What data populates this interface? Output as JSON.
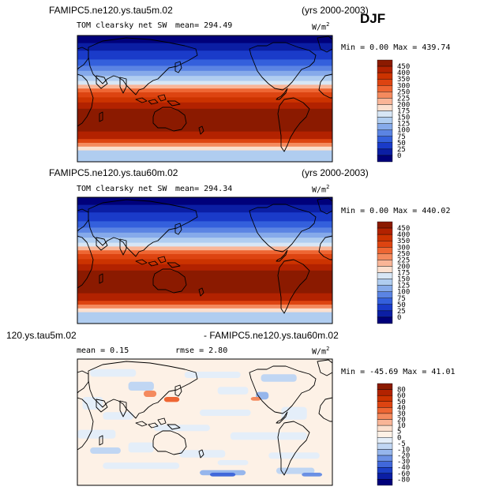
{
  "season": "DJF",
  "panels": [
    {
      "case_left": "FAMIPC5.ne120.ys.tau5m.02",
      "case_right": "(yrs 2000-2003)",
      "variable": "TOM clearsky net SW",
      "stat1": "mean= 294.49",
      "stat2": "",
      "units": "W/m",
      "units_sup": "2",
      "minmax": "Min =    0.00 Max = 439.74",
      "colorbar": {
        "levels": [
          "450",
          "400",
          "350",
          "300",
          "250",
          "225",
          "200",
          "175",
          "150",
          "125",
          "100",
          "75",
          "50",
          "25",
          "0"
        ],
        "colors": [
          "#8b1a00",
          "#b22200",
          "#cc3300",
          "#dd4411",
          "#ee6633",
          "#f48a5e",
          "#f9b597",
          "#fbe0cf",
          "#d7e6f5",
          "#b0cdf0",
          "#86aaea",
          "#5b84e3",
          "#3460dc",
          "#1a3bc9",
          "#0b1ea4",
          "#00007a"
        ]
      }
    },
    {
      "case_left": "FAMIPC5.ne120.ys.tau60m.02",
      "case_right": "(yrs 2000-2003)",
      "variable": "TOM clearsky net SW",
      "stat1": "mean= 294.34",
      "stat2": "",
      "units": "W/m",
      "units_sup": "2",
      "minmax": "Min =    0.00 Max = 440.02",
      "colorbar": {
        "levels": [
          "450",
          "400",
          "350",
          "300",
          "250",
          "225",
          "200",
          "175",
          "150",
          "125",
          "100",
          "75",
          "50",
          "25",
          "0"
        ],
        "colors": [
          "#8b1a00",
          "#b22200",
          "#cc3300",
          "#dd4411",
          "#ee6633",
          "#f48a5e",
          "#f9b597",
          "#fbe0cf",
          "#d7e6f5",
          "#b0cdf0",
          "#86aaea",
          "#5b84e3",
          "#3460dc",
          "#1a3bc9",
          "#0b1ea4",
          "#00007a"
        ]
      }
    },
    {
      "case_left": "120.ys.tau5m.02",
      "case_right": "- FAMIPC5.ne120.ys.tau60m.02",
      "variable": "",
      "stat1": "mean =    0.15",
      "stat2": "rmse =    2.80",
      "units": "W/m",
      "units_sup": "2",
      "minmax": "Min = -45.69 Max =  41.01",
      "colorbar": {
        "levels": [
          "80",
          "60",
          "50",
          "40",
          "30",
          "20",
          "10",
          "5",
          "0",
          "-5",
          "-10",
          "-20",
          "-30",
          "-40",
          "-60",
          "-80"
        ],
        "colors": [
          "#8b1a00",
          "#b22200",
          "#cc3300",
          "#dd4411",
          "#ee6633",
          "#f48a5e",
          "#f9b597",
          "#fbe0cf",
          "#fdf1e6",
          "#e4eef9",
          "#c0d6f3",
          "#96b6ec",
          "#6b90e4",
          "#4168da",
          "#1c3fc6",
          "#0b1ea4",
          "#00007a"
        ]
      }
    }
  ],
  "chart_data": [
    {
      "type": "heatmap",
      "title": "TOM clearsky net SW",
      "subtitle": "FAMIPC5.ne120.ys.tau5m.02 (yrs 2000-2003)",
      "season": "DJF",
      "units": "W/m2",
      "mean": 294.49,
      "min": 0.0,
      "max": 439.74,
      "contour_levels": [
        0,
        25,
        50,
        75,
        100,
        125,
        150,
        175,
        200,
        225,
        250,
        300,
        350,
        400,
        450
      ],
      "map": "global lat-lon, Pacific-centered",
      "latitudinal_bands_south_to_north": [
        {
          "lat_range": "90S-70S",
          "value_range": "150-175"
        },
        {
          "lat_range": "70S-60S",
          "value_range": "200-250"
        },
        {
          "lat_range": "60S-45S",
          "value_range": "300-400"
        },
        {
          "lat_range": "45S-10N",
          "value_range": ">400"
        },
        {
          "lat_range": "10N-25N",
          "value_range": "350-400"
        },
        {
          "lat_range": "25N-35N",
          "value_range": "250-300"
        },
        {
          "lat_range": "35N-45N",
          "value_range": "175-225"
        },
        {
          "lat_range": "45N-55N",
          "value_range": "100-150"
        },
        {
          "lat_range": "55N-90N",
          "value_range": "0-75"
        }
      ]
    },
    {
      "type": "heatmap",
      "title": "TOM clearsky net SW",
      "subtitle": "FAMIPC5.ne120.ys.tau60m.02 (yrs 2000-2003)",
      "season": "DJF",
      "units": "W/m2",
      "mean": 294.34,
      "min": 0.0,
      "max": 440.02,
      "contour_levels": [
        0,
        25,
        50,
        75,
        100,
        125,
        150,
        175,
        200,
        225,
        250,
        300,
        350,
        400,
        450
      ],
      "map": "global lat-lon, Pacific-centered",
      "latitudinal_bands_south_to_north": [
        {
          "lat_range": "90S-70S",
          "value_range": "150-175"
        },
        {
          "lat_range": "70S-60S",
          "value_range": "200-250"
        },
        {
          "lat_range": "60S-45S",
          "value_range": "300-400"
        },
        {
          "lat_range": "45S-10N",
          "value_range": ">400"
        },
        {
          "lat_range": "10N-25N",
          "value_range": "350-400"
        },
        {
          "lat_range": "25N-35N",
          "value_range": "250-300"
        },
        {
          "lat_range": "35N-45N",
          "value_range": "175-225"
        },
        {
          "lat_range": "45N-55N",
          "value_range": "100-150"
        },
        {
          "lat_range": "55N-90N",
          "value_range": "0-75"
        }
      ]
    },
    {
      "type": "heatmap",
      "title": "120.ys.tau5m.02 - FAMIPC5.ne120.ys.tau60m.02",
      "season": "DJF",
      "units": "W/m2",
      "mean": 0.15,
      "rmse": 2.8,
      "min": -45.69,
      "max": 41.01,
      "contour_levels": [
        -80,
        -60,
        -40,
        -30,
        -20,
        -10,
        -5,
        0,
        5,
        10,
        20,
        30,
        40,
        50,
        60,
        80
      ],
      "map": "global lat-lon, Pacific-centered",
      "pattern": "mostly 0 to 5 with scattered -5 to -10 patches; strongest negative near 60S Atlantic, small positive spots over Asia and North Atlantic"
    }
  ]
}
